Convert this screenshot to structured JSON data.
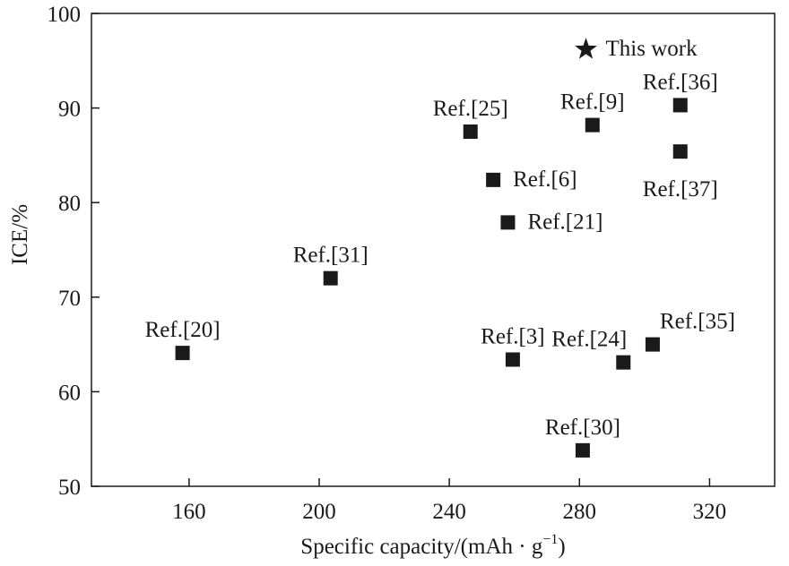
{
  "chart_data": {
    "type": "scatter",
    "title": "",
    "xlabel": "Specific capacity/(mAh · g",
    "xlabel_sup": "−1",
    "xlabel_close": ")",
    "ylabel": "ICE/%",
    "xlim": [
      130,
      340
    ],
    "ylim": [
      50,
      100
    ],
    "xticks": [
      160,
      200,
      240,
      280,
      320
    ],
    "yticks": [
      50,
      60,
      70,
      80,
      90,
      100
    ],
    "grid": false,
    "colors": {
      "marker": "#1a1a1a",
      "axis": "#1a1a1a"
    },
    "points": [
      {
        "label": "Ref.[20]",
        "x": 158,
        "y": 64.1,
        "marker": "square",
        "label_pos": "above"
      },
      {
        "label": "Ref.[31]",
        "x": 203.5,
        "y": 72.0,
        "marker": "square",
        "label_pos": "above"
      },
      {
        "label": "Ref.[25]",
        "x": 246.5,
        "y": 87.5,
        "marker": "square",
        "label_pos": "above"
      },
      {
        "label": "Ref.[6]",
        "x": 253.5,
        "y": 82.4,
        "marker": "square",
        "label_pos": "right"
      },
      {
        "label": "Ref.[21]",
        "x": 258,
        "y": 77.9,
        "marker": "square",
        "label_pos": "right"
      },
      {
        "label": "Ref.[3]",
        "x": 259.5,
        "y": 63.4,
        "marker": "square",
        "label_pos": "above"
      },
      {
        "label": "Ref.[9]",
        "x": 284,
        "y": 88.2,
        "marker": "square",
        "label_pos": "above"
      },
      {
        "label": "Ref.[30]",
        "x": 281,
        "y": 53.8,
        "marker": "square",
        "label_pos": "above"
      },
      {
        "label": "Ref.[24]",
        "x": 293.5,
        "y": 63.1,
        "marker": "square",
        "label_pos": "above-left"
      },
      {
        "label": "Ref.[35]",
        "x": 302.5,
        "y": 65.0,
        "marker": "square",
        "label_pos": "above-right"
      },
      {
        "label": "Ref.[36]",
        "x": 311,
        "y": 90.3,
        "marker": "square",
        "label_pos": "above"
      },
      {
        "label": "Ref.[37]",
        "x": 311,
        "y": 85.4,
        "marker": "square",
        "label_pos": "below"
      },
      {
        "label": "This work",
        "x": 282,
        "y": 96.2,
        "marker": "star",
        "label_pos": "right"
      }
    ]
  }
}
